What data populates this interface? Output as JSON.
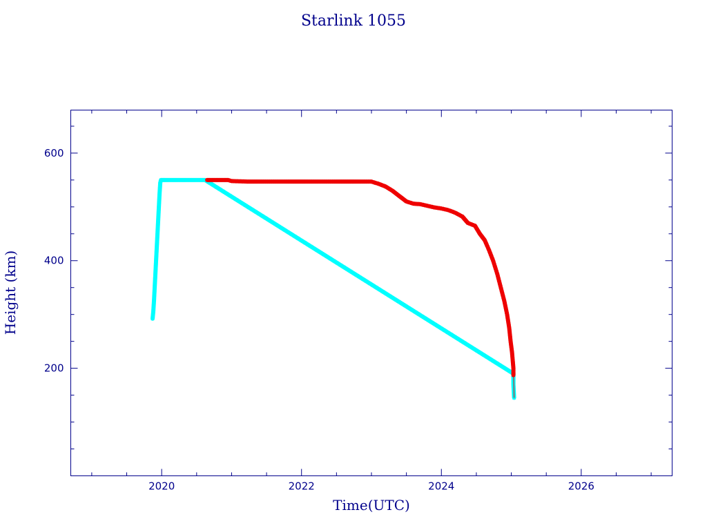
{
  "chart_data": {
    "type": "scatter",
    "title": "Starlink 1055",
    "xlabel": "Time(UTC)",
    "ylabel": "Height (km)",
    "xlim": [
      2018.7,
      2027.3
    ],
    "ylim": [
      0,
      680
    ],
    "x_major_ticks": [
      2020,
      2022,
      2024,
      2026
    ],
    "x_minor_ticks": [
      2019,
      2019.5,
      2020,
      2020.5,
      2021,
      2021.5,
      2022,
      2022.5,
      2023,
      2023.5,
      2024,
      2024.5,
      2025,
      2025.5,
      2026,
      2026.5,
      2027
    ],
    "y_major_ticks": [
      200,
      400,
      600
    ],
    "y_minor_ticks": [
      50,
      100,
      150,
      200,
      250,
      300,
      350,
      400,
      450,
      500,
      550,
      600,
      650
    ],
    "grid": false,
    "series": [
      {
        "color": "#00ffff",
        "marker": "asterisk",
        "points": [
          [
            2019.87,
            292
          ],
          [
            2019.88,
            305
          ],
          [
            2019.89,
            325
          ],
          [
            2019.9,
            350
          ],
          [
            2019.91,
            375
          ],
          [
            2019.92,
            400
          ],
          [
            2019.93,
            425
          ],
          [
            2019.94,
            450
          ],
          [
            2019.95,
            475
          ],
          [
            2019.96,
            500
          ],
          [
            2019.97,
            525
          ],
          [
            2019.98,
            545
          ],
          [
            2019.99,
            550
          ],
          [
            2020.05,
            550
          ],
          [
            2020.15,
            550
          ],
          [
            2020.25,
            550
          ],
          [
            2020.35,
            550
          ],
          [
            2020.45,
            550
          ],
          [
            2020.55,
            550
          ],
          [
            2020.62,
            550
          ],
          [
            2025.03,
            190
          ],
          [
            2025.03,
            178
          ],
          [
            2025.03,
            170
          ],
          [
            2025.04,
            145
          ]
        ]
      },
      {
        "color": "#ee0000",
        "marker": "asterisk",
        "points": [
          [
            2020.65,
            550
          ],
          [
            2020.8,
            550
          ],
          [
            2020.95,
            550
          ],
          [
            2021.0,
            548
          ],
          [
            2021.25,
            547
          ],
          [
            2021.5,
            547
          ],
          [
            2021.75,
            547
          ],
          [
            2022.0,
            547
          ],
          [
            2022.25,
            547
          ],
          [
            2022.5,
            547
          ],
          [
            2022.75,
            547
          ],
          [
            2023.0,
            547
          ],
          [
            2023.1,
            543
          ],
          [
            2023.2,
            538
          ],
          [
            2023.3,
            530
          ],
          [
            2023.4,
            520
          ],
          [
            2023.5,
            510
          ],
          [
            2023.6,
            506
          ],
          [
            2023.7,
            505
          ],
          [
            2023.8,
            502
          ],
          [
            2023.9,
            499
          ],
          [
            2024.0,
            497
          ],
          [
            2024.1,
            494
          ],
          [
            2024.2,
            489
          ],
          [
            2024.3,
            482
          ],
          [
            2024.38,
            470
          ],
          [
            2024.48,
            465
          ],
          [
            2024.55,
            450
          ],
          [
            2024.62,
            438
          ],
          [
            2024.68,
            420
          ],
          [
            2024.74,
            400
          ],
          [
            2024.8,
            375
          ],
          [
            2024.85,
            350
          ],
          [
            2024.9,
            325
          ],
          [
            2024.94,
            300
          ],
          [
            2024.97,
            275
          ],
          [
            2024.99,
            250
          ],
          [
            2025.01,
            230
          ],
          [
            2025.02,
            215
          ],
          [
            2025.03,
            200
          ],
          [
            2025.03,
            187
          ]
        ]
      }
    ]
  }
}
